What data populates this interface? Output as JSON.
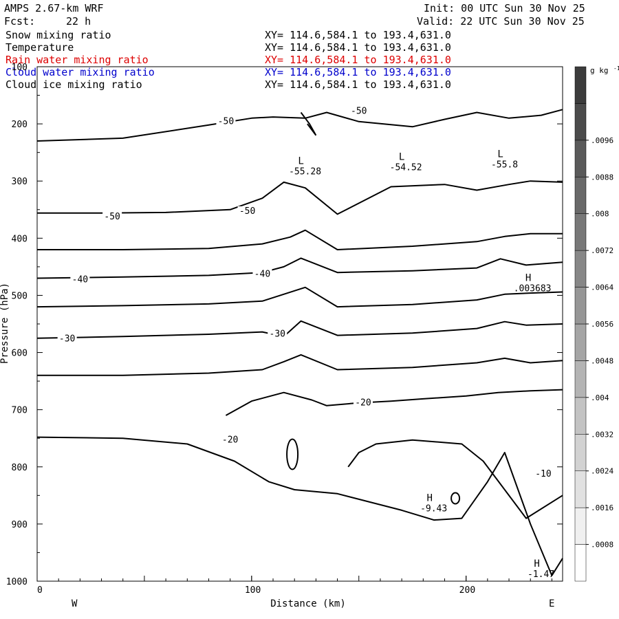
{
  "header": {
    "model": "AMPS 2.67-km WRF",
    "forecast_label": "Fcst:",
    "forecast_value": "22 h",
    "init": "Init: 00 UTC Sun 30 Nov 25",
    "valid": "Valid: 22 UTC Sun 30 Nov 25"
  },
  "fields": [
    {
      "name": "Snow mixing ratio",
      "xy": "XY= 114.6,584.1 to 193.4,631.0",
      "color": "#000000"
    },
    {
      "name": "Temperature",
      "xy": "XY= 114.6,584.1 to 193.4,631.0",
      "color": "#000000"
    },
    {
      "name": "Rain water mixing ratio",
      "xy": "XY= 114.6,584.1 to 193.4,631.0",
      "color": "#dd0000"
    },
    {
      "name": "Cloud water mixing ratio",
      "xy": "XY= 114.6,584.1 to 193.4,631.0",
      "color": "#0000cc"
    },
    {
      "name": "Cloud ice mixing ratio",
      "xy": "XY= 114.6,584.1 to 193.4,631.0",
      "color": "#000000"
    }
  ],
  "chart_data": {
    "type": "line",
    "subtype": "vertical cross-section contour",
    "xlabel": "Distance (km)",
    "ylabel": "Pressure (hPa)",
    "xlim": [
      0,
      245
    ],
    "ylim": [
      1000,
      100
    ],
    "x_ticks": [
      0,
      100,
      200
    ],
    "x_tick_labels": [
      "0",
      "100",
      "200"
    ],
    "y_ticks": [
      1000,
      900,
      800,
      700,
      600,
      500,
      400,
      300,
      200,
      100
    ],
    "y_tick_labels": [
      "1000",
      "900",
      "800",
      "700",
      "600",
      "500",
      "400",
      "300",
      "200",
      "100"
    ],
    "y_log": false,
    "grid": false,
    "left_end_label": "W",
    "right_end_label": "E",
    "colorbar": {
      "unit": "g kg",
      "unit_exp": "-1",
      "ticks": [
        ".0008",
        ".0016",
        ".0024",
        ".0032",
        ".004",
        ".0048",
        ".0056",
        ".0064",
        ".0072",
        ".008",
        ".0088",
        ".0096"
      ],
      "bins": 14
    },
    "series": [
      {
        "points": [
          [
            0,
            230
          ],
          [
            40,
            225
          ],
          [
            80,
            202
          ],
          [
            100,
            190
          ],
          [
            110,
            188
          ],
          [
            125,
            190
          ],
          [
            135,
            180
          ],
          [
            150,
            196
          ],
          [
            175,
            205
          ],
          [
            190,
            192
          ],
          [
            205,
            180
          ],
          [
            220,
            190
          ],
          [
            235,
            185
          ],
          [
            245,
            175
          ]
        ]
      },
      {
        "points": [
          [
            0,
            356
          ],
          [
            30,
            356
          ],
          [
            60,
            355
          ],
          [
            90,
            350
          ],
          [
            105,
            330
          ],
          [
            115,
            302
          ],
          [
            125,
            312
          ],
          [
            140,
            358
          ],
          [
            165,
            310
          ],
          [
            190,
            306
          ],
          [
            205,
            316
          ],
          [
            220,
            306
          ],
          [
            230,
            300
          ],
          [
            245,
            302
          ]
        ]
      },
      {
        "points": [
          [
            0,
            420
          ],
          [
            40,
            420
          ],
          [
            80,
            418
          ],
          [
            105,
            410
          ],
          [
            118,
            398
          ],
          [
            125,
            386
          ],
          [
            140,
            420
          ],
          [
            175,
            414
          ],
          [
            205,
            406
          ],
          [
            218,
            397
          ],
          [
            230,
            392
          ],
          [
            245,
            392
          ]
        ]
      },
      {
        "points": [
          [
            0,
            470
          ],
          [
            40,
            468
          ],
          [
            80,
            465
          ],
          [
            105,
            460
          ],
          [
            115,
            450
          ],
          [
            123,
            435
          ],
          [
            140,
            460
          ],
          [
            175,
            457
          ],
          [
            205,
            452
          ],
          [
            216,
            436
          ],
          [
            228,
            447
          ],
          [
            245,
            442
          ]
        ]
      },
      {
        "points": [
          [
            0,
            520
          ],
          [
            40,
            518
          ],
          [
            80,
            515
          ],
          [
            105,
            510
          ],
          [
            115,
            498
          ],
          [
            125,
            486
          ],
          [
            140,
            520
          ],
          [
            175,
            516
          ],
          [
            205,
            508
          ],
          [
            218,
            498
          ],
          [
            230,
            496
          ],
          [
            245,
            494
          ]
        ]
      },
      {
        "points": [
          [
            0,
            575
          ],
          [
            40,
            572
          ],
          [
            80,
            568
          ],
          [
            105,
            564
          ],
          [
            115,
            572
          ],
          [
            123,
            545
          ],
          [
            140,
            570
          ],
          [
            175,
            566
          ],
          [
            205,
            558
          ],
          [
            218,
            546
          ],
          [
            228,
            552
          ],
          [
            245,
            550
          ]
        ]
      },
      {
        "points": [
          [
            0,
            640
          ],
          [
            40,
            640
          ],
          [
            80,
            636
          ],
          [
            105,
            630
          ],
          [
            115,
            616
          ],
          [
            123,
            604
          ],
          [
            140,
            630
          ],
          [
            175,
            626
          ],
          [
            205,
            618
          ],
          [
            218,
            610
          ],
          [
            230,
            618
          ],
          [
            245,
            614
          ]
        ]
      },
      {
        "points": [
          [
            88,
            710
          ],
          [
            100,
            685
          ],
          [
            115,
            670
          ],
          [
            128,
            683
          ],
          [
            135,
            693
          ],
          [
            150,
            688
          ],
          [
            165,
            685
          ],
          [
            180,
            681
          ],
          [
            200,
            676
          ],
          [
            215,
            670
          ],
          [
            230,
            667
          ],
          [
            245,
            665
          ]
        ]
      },
      {
        "points": [
          [
            0,
            748
          ],
          [
            40,
            750
          ],
          [
            70,
            760
          ],
          [
            92,
            790
          ],
          [
            108,
            826
          ],
          [
            120,
            840
          ],
          [
            140,
            847
          ],
          [
            170,
            876
          ],
          [
            185,
            893
          ],
          [
            198,
            890
          ],
          [
            210,
            826
          ],
          [
            218,
            775
          ],
          [
            230,
            900
          ],
          [
            240,
            990
          ],
          [
            245,
            960
          ]
        ]
      },
      {
        "points": [
          [
            145,
            800
          ],
          [
            150,
            775
          ],
          [
            158,
            760
          ],
          [
            175,
            753
          ],
          [
            198,
            760
          ],
          [
            208,
            790
          ],
          [
            214,
            820
          ],
          [
            228,
            890
          ],
          [
            245,
            850
          ]
        ]
      }
    ],
    "contour_labels": [
      "-50",
      "-50",
      "-50",
      "-50",
      "-40",
      "-40",
      "-30",
      "-30",
      "-20",
      "-20",
      "-10"
    ],
    "extrema": [
      {
        "letter": "L",
        "value": "-55.28"
      },
      {
        "letter": "L",
        "value": "-54.52"
      },
      {
        "letter": "L",
        "value": "-55.8"
      },
      {
        "letter": "H",
        "value": ".003683"
      },
      {
        "letter": "H",
        "value": "-9.43"
      },
      {
        "letter": "H",
        "value": "-1.47"
      }
    ]
  }
}
